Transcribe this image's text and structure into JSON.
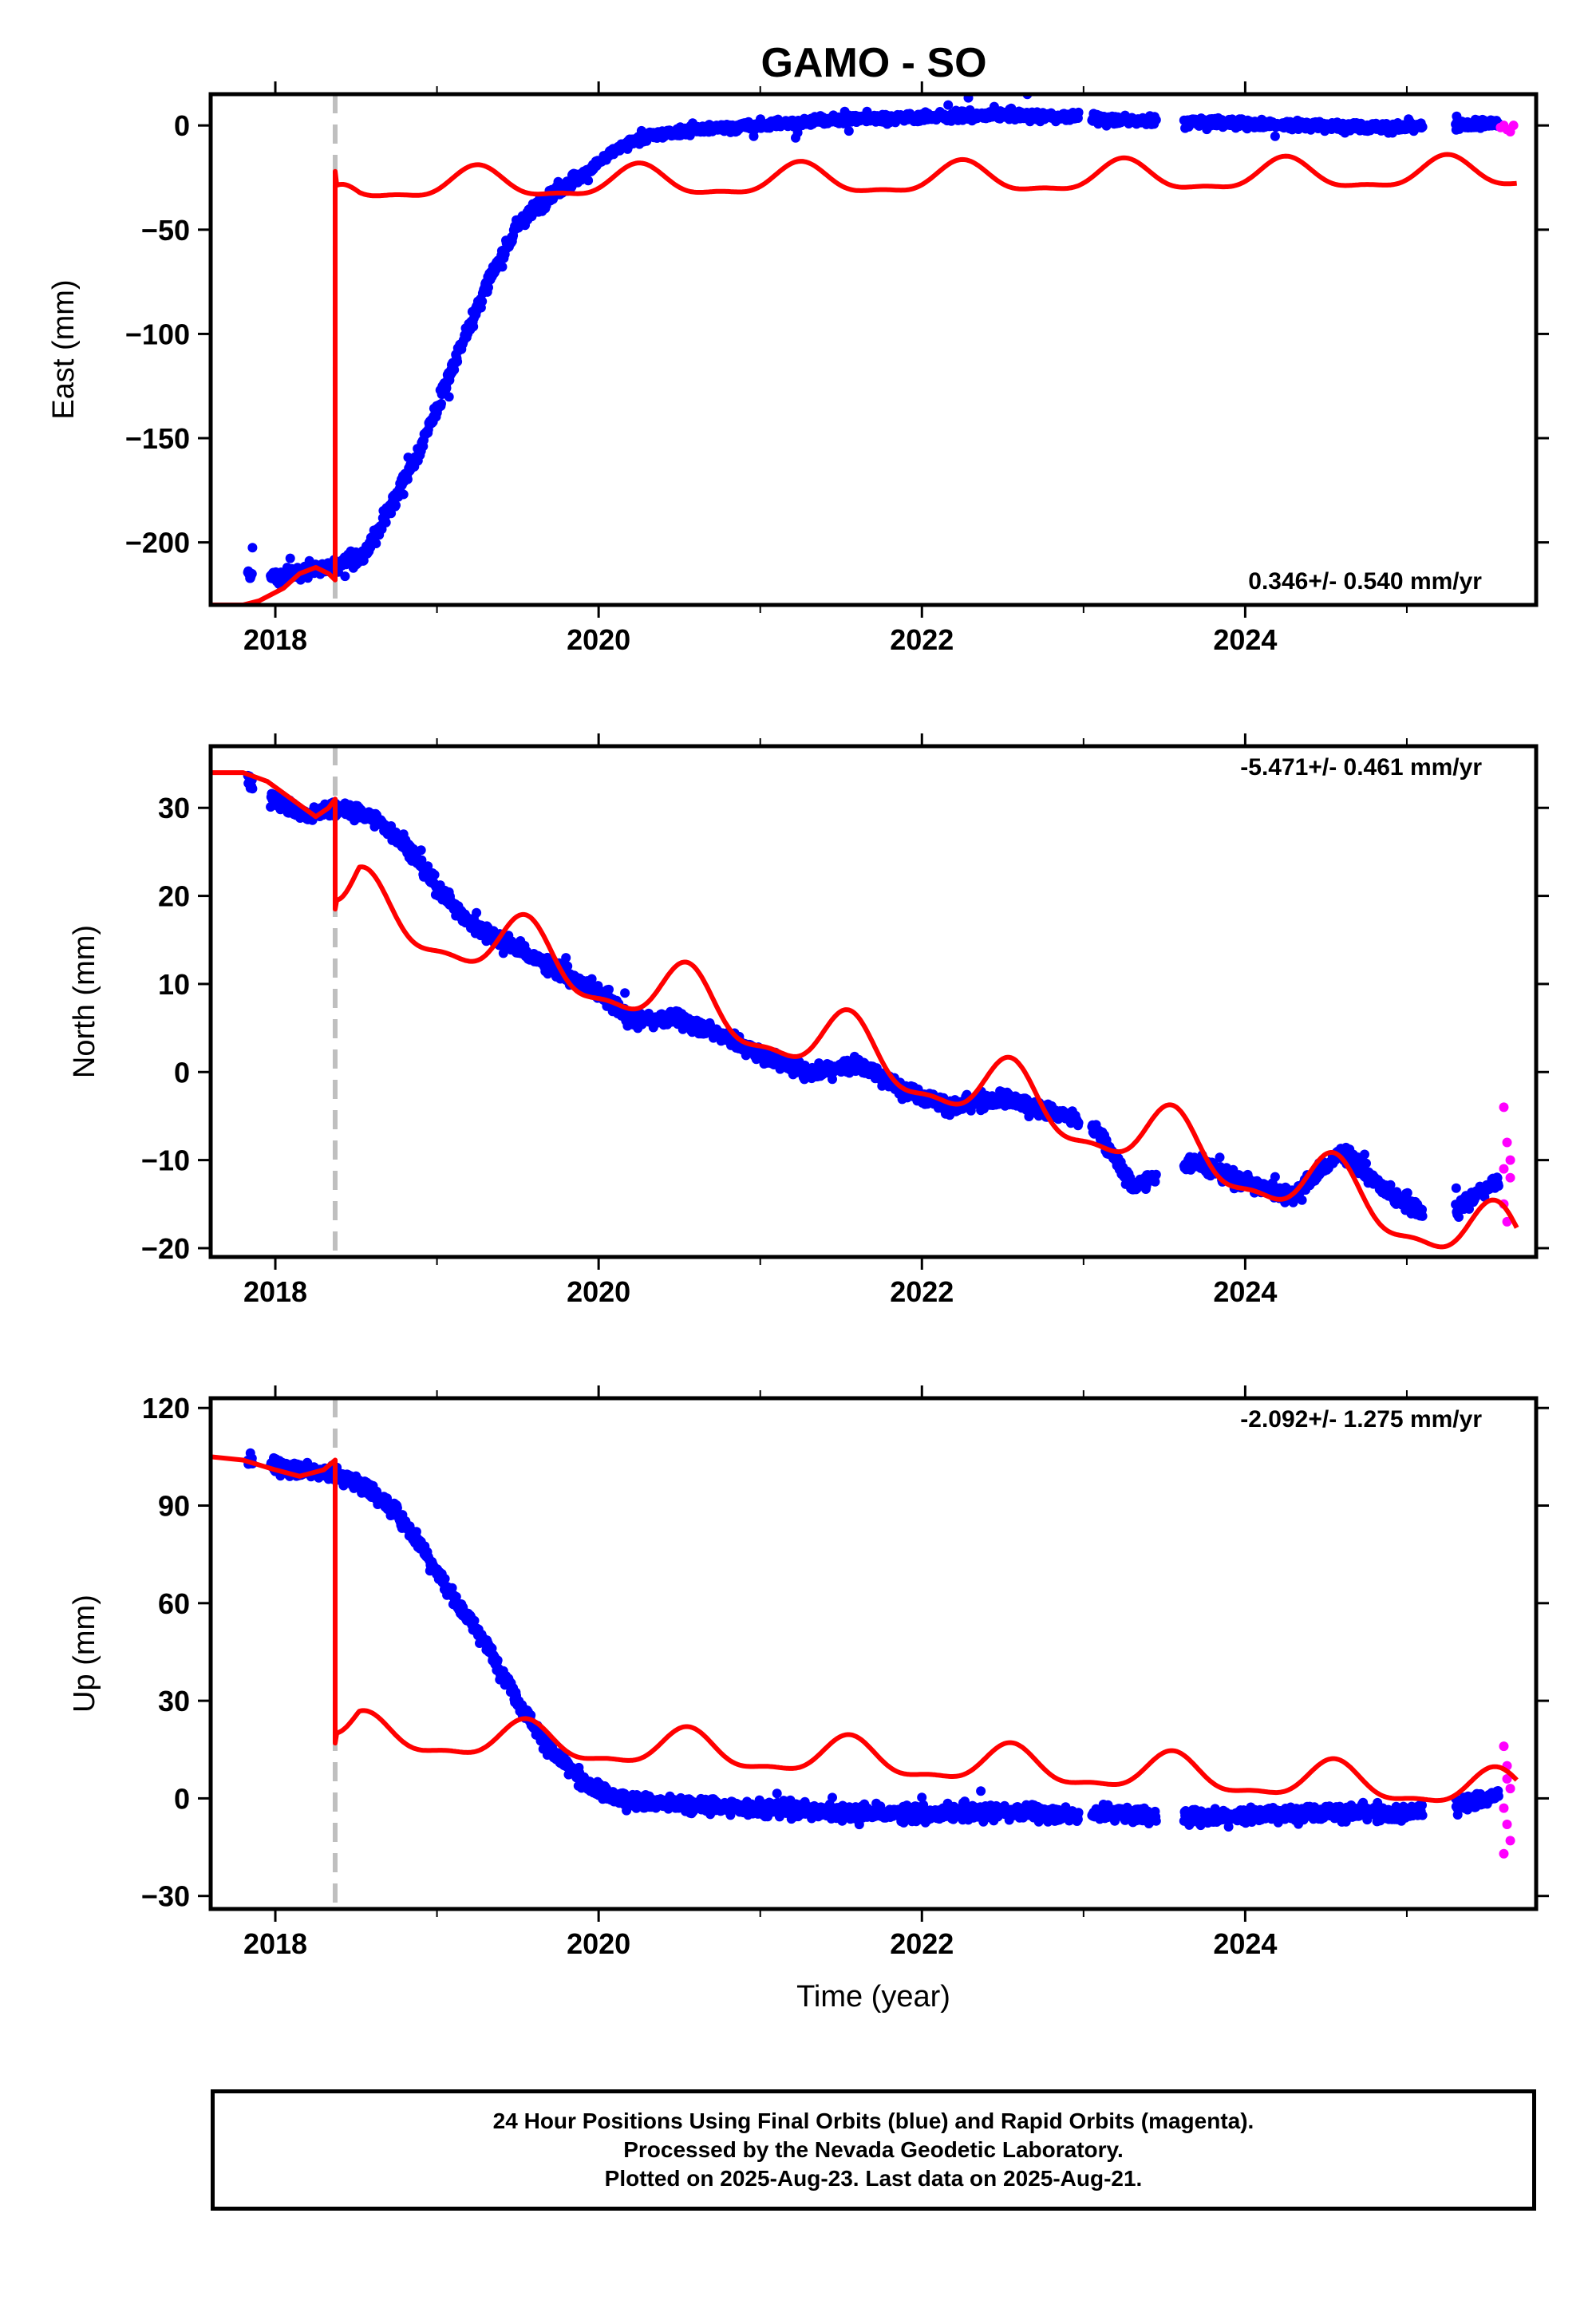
{
  "title": "GAMO - SO",
  "colors": {
    "final_orbits": "#0000ff",
    "rapid_orbits": "#ff00ff",
    "model": "#ff0000",
    "offset_line": "#bfbfbf"
  },
  "chart_data": [
    {
      "type": "scatter",
      "ylabel": "East (mm)",
      "xlim": [
        2017.6,
        2025.8
      ],
      "ylim": [
        -230,
        15
      ],
      "x_ticks": [
        "2018",
        "2020",
        "2022",
        "2024"
      ],
      "y_ticks": [
        "0",
        "−50",
        "−100",
        "−150",
        "−200"
      ],
      "y_tick_values": [
        0,
        -50,
        -100,
        -150,
        -200
      ],
      "rate_label": "0.346+/- 0.540 mm/yr",
      "offset_epoch": 2018.37,
      "final_orbit_trend": [
        [
          2017.83,
          -215
        ],
        [
          2018.0,
          -217
        ],
        [
          2018.2,
          -214
        ],
        [
          2018.37,
          -211
        ],
        [
          2018.55,
          -206
        ],
        [
          2018.7,
          -185
        ],
        [
          2018.9,
          -155
        ],
        [
          2019.1,
          -115
        ],
        [
          2019.3,
          -78
        ],
        [
          2019.5,
          -48
        ],
        [
          2019.7,
          -33
        ],
        [
          2019.9,
          -24
        ],
        [
          2020.1,
          -12
        ],
        [
          2020.3,
          -5
        ],
        [
          2020.6,
          -2
        ],
        [
          2021.0,
          0
        ],
        [
          2021.5,
          3
        ],
        [
          2022.0,
          4
        ],
        [
          2022.5,
          5
        ],
        [
          2022.95,
          4
        ],
        [
          2023.15,
          3
        ],
        [
          2023.6,
          2
        ],
        [
          2024.0,
          1
        ],
        [
          2024.5,
          0
        ],
        [
          2025.0,
          -1
        ],
        [
          2025.55,
          1
        ]
      ],
      "rapid_orbit_points": [
        [
          2025.6,
          0
        ],
        [
          2025.62,
          -2
        ],
        [
          2025.64,
          -3
        ],
        [
          2025.66,
          0
        ],
        [
          2025.58,
          -1
        ]
      ],
      "model_pre_offset": [
        [
          2017.6,
          -230
        ],
        [
          2017.8,
          -230
        ],
        [
          2017.9,
          -228
        ],
        [
          2018.05,
          -222
        ],
        [
          2018.15,
          -215
        ],
        [
          2018.25,
          -212
        ],
        [
          2018.33,
          -215
        ],
        [
          2018.37,
          -218
        ]
      ],
      "model_offset_top": -22,
      "model_post": {
        "mean_start": -29,
        "mean_end": -23,
        "amplitude": 7,
        "peak_phase": 0.25
      }
    },
    {
      "type": "scatter",
      "ylabel": "North (mm)",
      "xlim": [
        2017.6,
        2025.8
      ],
      "ylim": [
        -21,
        37
      ],
      "x_ticks": [
        "2018",
        "2020",
        "2022",
        "2024"
      ],
      "y_ticks": [
        "30",
        "20",
        "10",
        "0",
        "−10",
        "−20"
      ],
      "y_tick_values": [
        30,
        20,
        10,
        0,
        -10,
        -20
      ],
      "rate_label": "-5.471+/- 0.461 mm/yr",
      "offset_epoch": 2018.37,
      "final_orbit_trend": [
        [
          2017.83,
          33
        ],
        [
          2018.0,
          31
        ],
        [
          2018.2,
          29
        ],
        [
          2018.37,
          30
        ],
        [
          2018.6,
          29
        ],
        [
          2018.8,
          26
        ],
        [
          2019.0,
          21
        ],
        [
          2019.2,
          17
        ],
        [
          2019.5,
          14
        ],
        [
          2019.8,
          11
        ],
        [
          2020.0,
          9
        ],
        [
          2020.2,
          6
        ],
        [
          2020.5,
          6
        ],
        [
          2020.8,
          4
        ],
        [
          2021.0,
          2
        ],
        [
          2021.3,
          0
        ],
        [
          2021.6,
          1
        ],
        [
          2021.9,
          -2
        ],
        [
          2022.2,
          -4
        ],
        [
          2022.5,
          -3
        ],
        [
          2022.9,
          -5
        ],
        [
          2023.1,
          -7
        ],
        [
          2023.3,
          -13
        ],
        [
          2023.7,
          -10
        ],
        [
          2023.9,
          -12
        ],
        [
          2024.3,
          -14
        ],
        [
          2024.6,
          -9
        ],
        [
          2024.9,
          -14
        ],
        [
          2025.2,
          -17
        ],
        [
          2025.5,
          -13
        ],
        [
          2025.6,
          -12
        ]
      ],
      "rapid_orbit_points": [
        [
          2025.6,
          -4
        ],
        [
          2025.62,
          -8
        ],
        [
          2025.64,
          -12
        ],
        [
          2025.6,
          -15
        ],
        [
          2025.62,
          -17
        ],
        [
          2025.64,
          -10
        ],
        [
          2025.6,
          -11
        ]
      ],
      "model_pre_offset": [
        [
          2017.6,
          34
        ],
        [
          2017.8,
          34
        ],
        [
          2017.95,
          33
        ],
        [
          2018.1,
          31
        ],
        [
          2018.25,
          29
        ],
        [
          2018.33,
          30
        ],
        [
          2018.37,
          31
        ]
      ],
      "model_offset_top": 18.5,
      "model_post": {
        "mean_start": 19.5,
        "mean_end": -20,
        "amplitude": 3.5,
        "peak_phase": 0.55
      }
    },
    {
      "type": "scatter",
      "ylabel": "Up (mm)",
      "xlim": [
        2017.6,
        2025.8
      ],
      "ylim": [
        -34,
        123
      ],
      "x_ticks": [
        "2018",
        "2020",
        "2022",
        "2024"
      ],
      "y_ticks": [
        "120",
        "90",
        "60",
        "30",
        "0",
        "−30"
      ],
      "y_tick_values": [
        120,
        90,
        60,
        30,
        0,
        -30
      ],
      "rate_label": "-2.092+/- 1.275 mm/yr",
      "xlabel": "Time (year)",
      "offset_epoch": 2018.37,
      "final_orbit_trend": [
        [
          2017.83,
          104
        ],
        [
          2018.0,
          102
        ],
        [
          2018.2,
          101
        ],
        [
          2018.37,
          100
        ],
        [
          2018.55,
          96
        ],
        [
          2018.75,
          88
        ],
        [
          2018.9,
          78
        ],
        [
          2019.1,
          62
        ],
        [
          2019.3,
          48
        ],
        [
          2019.5,
          30
        ],
        [
          2019.7,
          15
        ],
        [
          2019.9,
          5
        ],
        [
          2020.1,
          0
        ],
        [
          2020.5,
          -2
        ],
        [
          2021.0,
          -3
        ],
        [
          2021.5,
          -4
        ],
        [
          2022.0,
          -5
        ],
        [
          2022.5,
          -4
        ],
        [
          2022.95,
          -5
        ],
        [
          2023.15,
          -4
        ],
        [
          2023.5,
          -6
        ],
        [
          2024.0,
          -5
        ],
        [
          2024.5,
          -4
        ],
        [
          2024.95,
          -5
        ],
        [
          2025.5,
          0
        ],
        [
          2025.6,
          2
        ]
      ],
      "rapid_orbit_points": [
        [
          2025.6,
          16
        ],
        [
          2025.62,
          10
        ],
        [
          2025.64,
          3
        ],
        [
          2025.6,
          -3
        ],
        [
          2025.62,
          -8
        ],
        [
          2025.64,
          -13
        ],
        [
          2025.6,
          -17
        ],
        [
          2025.62,
          6
        ]
      ],
      "model_pre_offset": [
        [
          2017.6,
          105
        ],
        [
          2017.8,
          104
        ],
        [
          2018.0,
          101
        ],
        [
          2018.15,
          99
        ],
        [
          2018.3,
          101
        ],
        [
          2018.37,
          104
        ]
      ],
      "model_offset_top": 17,
      "model_post": {
        "mean_start": 20,
        "mean_end": 2,
        "amplitude": 5.5,
        "peak_phase": 0.55
      }
    }
  ],
  "caption": {
    "line1": "24 Hour Positions Using Final Orbits (blue) and Rapid Orbits (magenta).",
    "line2": "Processed by the Nevada Geodetic Laboratory.",
    "line3": "Plotted on 2025-Aug-23. Last data on 2025-Aug-21."
  }
}
